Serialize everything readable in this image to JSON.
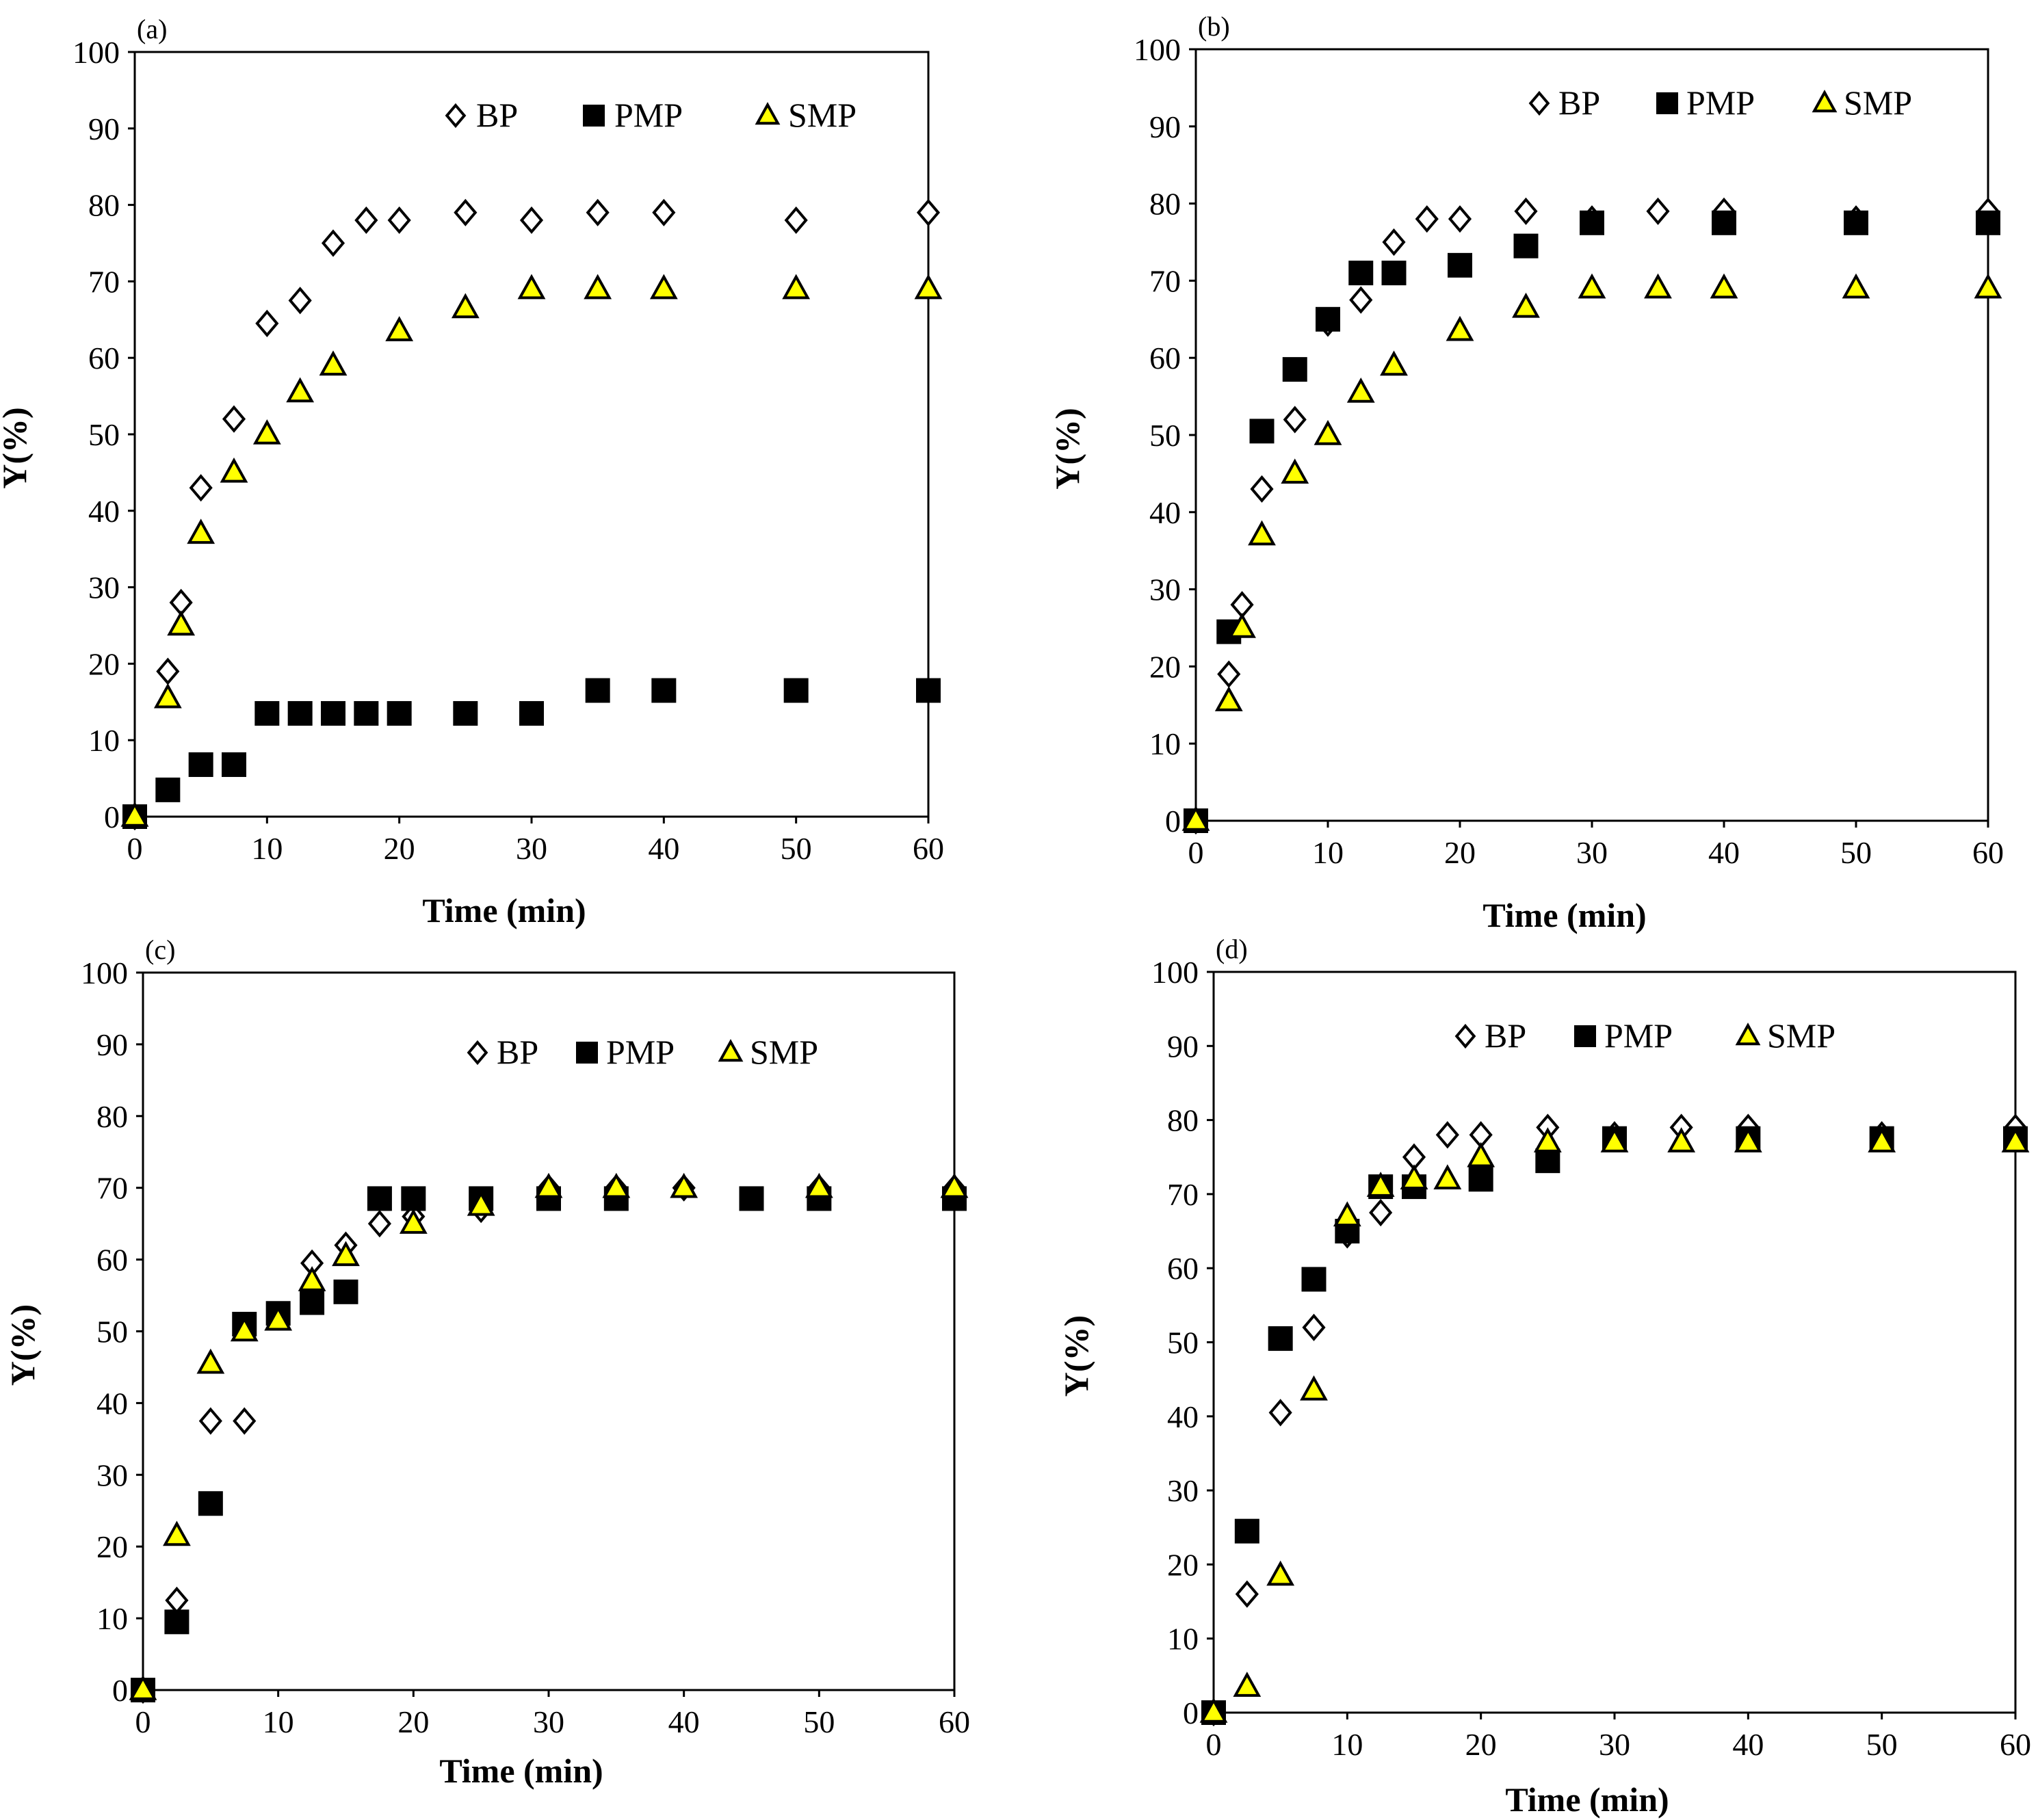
{
  "chart_data": [
    {
      "type": "scatter",
      "panel_label": "(a)",
      "xlabel": "Time (min)",
      "ylabel": "Y(%)",
      "xlim": [
        0,
        60
      ],
      "ylim": [
        0,
        100
      ],
      "xticks": [
        0,
        10,
        20,
        30,
        40,
        50,
        60
      ],
      "yticks": [
        0,
        10,
        20,
        30,
        40,
        50,
        60,
        70,
        80,
        90,
        100
      ],
      "legend_position": "top-right",
      "series": [
        {
          "name": "BP",
          "marker": "diamond-open",
          "color": "#ffffff",
          "x": [
            0,
            2.5,
            3.5,
            5,
            7.5,
            10,
            12.5,
            15,
            17.5,
            20,
            25,
            30,
            35,
            40,
            50,
            60
          ],
          "y": [
            0,
            19,
            28,
            43,
            52,
            64.5,
            67.5,
            75,
            78,
            78,
            79,
            78,
            79,
            79,
            78,
            79
          ]
        },
        {
          "name": "PMP",
          "marker": "square",
          "color": "#000000",
          "x": [
            0,
            2.5,
            5,
            7.5,
            10,
            12.5,
            15,
            17.5,
            20,
            25,
            30,
            35,
            40,
            50,
            60
          ],
          "y": [
            0,
            3.5,
            6.8,
            6.8,
            13.5,
            13.5,
            13.5,
            13.5,
            13.5,
            13.5,
            13.5,
            16.5,
            16.5,
            16.5,
            16.5
          ]
        },
        {
          "name": "SMP",
          "marker": "triangle",
          "color": "#ffff00",
          "x": [
            0,
            2.5,
            3.5,
            5,
            7.5,
            10,
            12.5,
            15,
            20,
            25,
            30,
            35,
            40,
            50,
            60
          ],
          "y": [
            0,
            15.5,
            25,
            37,
            45,
            50,
            55.5,
            59,
            63.5,
            66.5,
            69,
            69,
            69,
            69,
            69
          ]
        }
      ]
    },
    {
      "type": "scatter",
      "panel_label": "(b)",
      "xlabel": "Time (min)",
      "ylabel": "Y(%)",
      "xlim": [
        0,
        60
      ],
      "ylim": [
        0,
        100
      ],
      "xticks": [
        0,
        10,
        20,
        30,
        40,
        50,
        60
      ],
      "yticks": [
        0,
        10,
        20,
        30,
        40,
        50,
        60,
        70,
        80,
        90,
        100
      ],
      "legend_position": "top-right",
      "series": [
        {
          "name": "BP",
          "marker": "diamond-open",
          "color": "#ffffff",
          "x": [
            0,
            2.5,
            3.5,
            5,
            7.5,
            10,
            12.5,
            15,
            17.5,
            20,
            25,
            30,
            35,
            40,
            50,
            60
          ],
          "y": [
            0,
            19,
            28,
            43,
            52,
            64.5,
            67.5,
            75,
            78,
            78,
            79,
            78,
            79,
            79,
            78,
            79
          ]
        },
        {
          "name": "PMP",
          "marker": "square",
          "color": "#000000",
          "x": [
            0,
            2.5,
            5,
            7.5,
            10,
            12.5,
            15,
            20,
            25,
            30,
            40,
            50,
            60
          ],
          "y": [
            0,
            24.5,
            50.5,
            58.5,
            65,
            71,
            71,
            72,
            74.5,
            77.5,
            77.5,
            77.5,
            77.5
          ]
        },
        {
          "name": "SMP",
          "marker": "triangle",
          "color": "#ffff00",
          "x": [
            0,
            2.5,
            3.5,
            5,
            7.5,
            10,
            12.5,
            15,
            20,
            25,
            30,
            35,
            40,
            50,
            60
          ],
          "y": [
            0,
            15.5,
            25,
            37,
            45,
            50,
            55.5,
            59,
            63.5,
            66.5,
            69,
            69,
            69,
            69,
            69
          ]
        }
      ]
    },
    {
      "type": "scatter",
      "panel_label": "(c)",
      "xlabel": "Time (min)",
      "ylabel": "Y(%)",
      "xlim": [
        0,
        60
      ],
      "ylim": [
        0,
        100
      ],
      "xticks": [
        0,
        10,
        20,
        30,
        40,
        50,
        60
      ],
      "yticks": [
        0,
        10,
        20,
        30,
        40,
        50,
        60,
        70,
        80,
        90,
        100
      ],
      "legend_position": "top-right",
      "series": [
        {
          "name": "BP",
          "marker": "diamond-open",
          "color": "#ffffff",
          "x": [
            0,
            2.5,
            5,
            7.5,
            10,
            12.5,
            15,
            17.5,
            20,
            25,
            30,
            35,
            40,
            50,
            60
          ],
          "y": [
            0,
            12.5,
            37.5,
            37.5,
            52,
            59.5,
            62,
            65,
            66,
            67,
            70,
            70,
            70,
            70,
            70
          ]
        },
        {
          "name": "PMP",
          "marker": "square",
          "color": "#000000",
          "x": [
            0,
            2.5,
            5,
            7.5,
            10,
            12.5,
            15,
            17.5,
            20,
            25,
            30,
            35,
            45,
            50,
            60
          ],
          "y": [
            0,
            9.5,
            26,
            51,
            52.5,
            54,
            55.5,
            68.5,
            68.5,
            68.5,
            68.5,
            68.5,
            68.5,
            68.5,
            68.5
          ]
        },
        {
          "name": "SMP",
          "marker": "triangle",
          "color": "#ffff00",
          "x": [
            0,
            2.5,
            5,
            7.5,
            10,
            12.5,
            15,
            20,
            25,
            30,
            35,
            40,
            50,
            60
          ],
          "y": [
            0,
            21.5,
            45.5,
            50,
            51.5,
            57,
            60.5,
            65,
            67.5,
            70,
            70,
            70,
            70,
            70
          ]
        }
      ]
    },
    {
      "type": "scatter",
      "panel_label": "(d)",
      "xlabel": "Time (min)",
      "ylabel": "Y(%)",
      "xlim": [
        0,
        60
      ],
      "ylim": [
        0,
        100
      ],
      "xticks": [
        0,
        10,
        20,
        30,
        40,
        50,
        60
      ],
      "yticks": [
        0,
        10,
        20,
        30,
        40,
        50,
        60,
        70,
        80,
        90,
        100
      ],
      "legend_position": "top-right",
      "series": [
        {
          "name": "BP",
          "marker": "diamond-open",
          "color": "#ffffff",
          "x": [
            0,
            2.5,
            5,
            7.5,
            10,
            12.5,
            15,
            17.5,
            20,
            25,
            30,
            35,
            40,
            50,
            60
          ],
          "y": [
            0,
            16,
            40.5,
            52,
            64.5,
            67.5,
            75,
            78,
            78,
            79,
            78,
            79,
            79,
            78,
            79
          ]
        },
        {
          "name": "PMP",
          "marker": "square",
          "color": "#000000",
          "x": [
            0,
            2.5,
            5,
            7.5,
            10,
            12.5,
            15,
            20,
            25,
            30,
            40,
            50,
            60
          ],
          "y": [
            0,
            24.5,
            50.5,
            58.5,
            65,
            71,
            71,
            72,
            74.5,
            77.5,
            77.5,
            77.5,
            77.5
          ]
        },
        {
          "name": "SMP",
          "marker": "triangle",
          "color": "#ffff00",
          "x": [
            0,
            2.5,
            5,
            7.5,
            10,
            12.5,
            15,
            17.5,
            20,
            25,
            30,
            35,
            40,
            50,
            60
          ],
          "y": [
            0,
            3.5,
            18.5,
            43.5,
            67,
            71,
            72,
            72,
            75,
            77,
            77,
            77,
            77,
            77,
            77
          ]
        }
      ]
    }
  ]
}
